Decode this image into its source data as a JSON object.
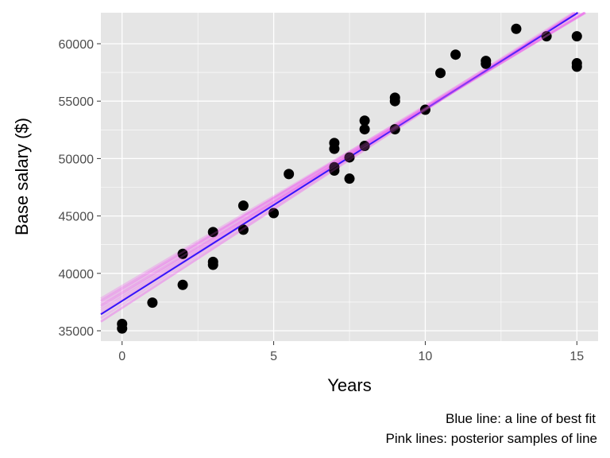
{
  "chart_data": {
    "type": "scatter",
    "title": "",
    "xlabel": "Years",
    "ylabel": "Base salary ($)",
    "xlim": [
      -0.7,
      15.7
    ],
    "ylim": [
      34100,
      62700
    ],
    "x_ticks": [
      0,
      5,
      10,
      15
    ],
    "y_ticks": [
      35000,
      40000,
      45000,
      50000,
      55000,
      60000
    ],
    "x_tick_labels": [
      "0",
      "5",
      "10",
      "15"
    ],
    "y_tick_labels": [
      "35000",
      "40000",
      "45000",
      "50000",
      "55000",
      "60000"
    ],
    "grid": true,
    "background": "#e5e5e5",
    "points": [
      {
        "x": 0,
        "y": 35600
      },
      {
        "x": 0,
        "y": 35200
      },
      {
        "x": 1,
        "y": 37450
      },
      {
        "x": 2,
        "y": 41700
      },
      {
        "x": 2,
        "y": 39000
      },
      {
        "x": 3,
        "y": 43600
      },
      {
        "x": 3,
        "y": 41000
      },
      {
        "x": 3,
        "y": 40750
      },
      {
        "x": 4,
        "y": 45900
      },
      {
        "x": 4,
        "y": 43800
      },
      {
        "x": 5,
        "y": 45250
      },
      {
        "x": 5.5,
        "y": 48650
      },
      {
        "x": 7,
        "y": 51350
      },
      {
        "x": 7,
        "y": 50850
      },
      {
        "x": 7,
        "y": 49250
      },
      {
        "x": 7,
        "y": 48950
      },
      {
        "x": 7.5,
        "y": 50100
      },
      {
        "x": 7.5,
        "y": 48250
      },
      {
        "x": 8,
        "y": 53300
      },
      {
        "x": 8,
        "y": 52550
      },
      {
        "x": 8,
        "y": 51100
      },
      {
        "x": 9,
        "y": 55300
      },
      {
        "x": 9,
        "y": 55000
      },
      {
        "x": 9,
        "y": 52550
      },
      {
        "x": 10,
        "y": 54250
      },
      {
        "x": 10.5,
        "y": 57450
      },
      {
        "x": 11,
        "y": 59050
      },
      {
        "x": 12,
        "y": 58500
      },
      {
        "x": 12,
        "y": 58250
      },
      {
        "x": 13,
        "y": 61300
      },
      {
        "x": 14,
        "y": 60650
      },
      {
        "x": 15,
        "y": 60650
      },
      {
        "x": 15,
        "y": 58300
      },
      {
        "x": 15,
        "y": 58000
      }
    ],
    "best_fit_line": {
      "intercept": 37600,
      "slope": 1670,
      "color": "#0000ff"
    },
    "posterior_lines": {
      "color": "#ee66ee",
      "lines": [
        {
          "intercept": 37600,
          "slope": 1670
        },
        {
          "intercept": 38300,
          "slope": 1600
        },
        {
          "intercept": 37000,
          "slope": 1720
        },
        {
          "intercept": 38700,
          "slope": 1570
        },
        {
          "intercept": 37900,
          "slope": 1650
        },
        {
          "intercept": 38500,
          "slope": 1610
        },
        {
          "intercept": 37300,
          "slope": 1700
        },
        {
          "intercept": 38100,
          "slope": 1630
        },
        {
          "intercept": 37700,
          "slope": 1680
        },
        {
          "intercept": 38900,
          "slope": 1560
        }
      ]
    },
    "point_color": "#000000",
    "captions": [
      "Blue line: a line of best fit ",
      "Pink lines: posterior samples of line"
    ]
  }
}
